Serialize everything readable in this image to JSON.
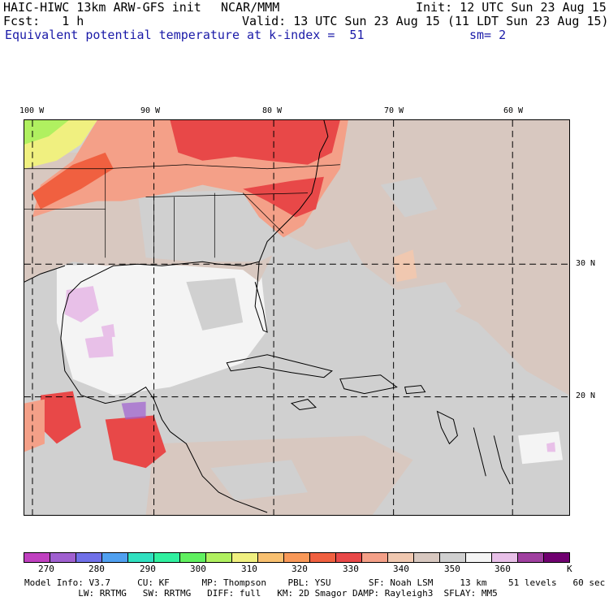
{
  "header": {
    "model": "HAIC-HIWC 13km ARW-GFS init",
    "org": "NCAR/MMM",
    "init": "Init: 12 UTC Sun 23 Aug 15",
    "fcst": "Fcst:   1 h",
    "valid": "Valid: 13 UTC Sun 23 Aug 15 (11 LDT Sun 23 Aug 15)",
    "field": "Equivalent potential temperature",
    "level": "at k-index =  51",
    "smooth": "sm= 2"
  },
  "map": {
    "lon_labels": [
      "100 W",
      "90 W",
      "80 W",
      "70 W",
      "60 W"
    ],
    "lat_labels": [
      "30 N",
      "20 N"
    ]
  },
  "colorbar": {
    "colors": [
      "#c040c0",
      "#a060d0",
      "#7070e8",
      "#50a0f0",
      "#30e0c0",
      "#30f0a0",
      "#60f060",
      "#b0f060",
      "#f0f080",
      "#f8c070",
      "#f89858",
      "#f06040",
      "#e84848",
      "#f4a088",
      "#f0c8b0",
      "#d8c8c0",
      "#d0d0d0",
      "#f4f4f4",
      "#e8c0e8",
      "#a040a0",
      "#700070"
    ],
    "ticks": [
      "270",
      "280",
      "290",
      "300",
      "310",
      "320",
      "330",
      "340",
      "350",
      "360"
    ],
    "unit": "K"
  },
  "footer": {
    "line1": "Model Info: V3.7     CU: KF      MP: Thompson    PBL: YSU       SF: Noah LSM     13 km    51 levels   60 sec",
    "line2": "          LW: RRTMG   SW: RRTMG   DIFF: full   KM: 2D Smagor DAMP: Rayleigh3  SFLAY: MM5"
  }
}
